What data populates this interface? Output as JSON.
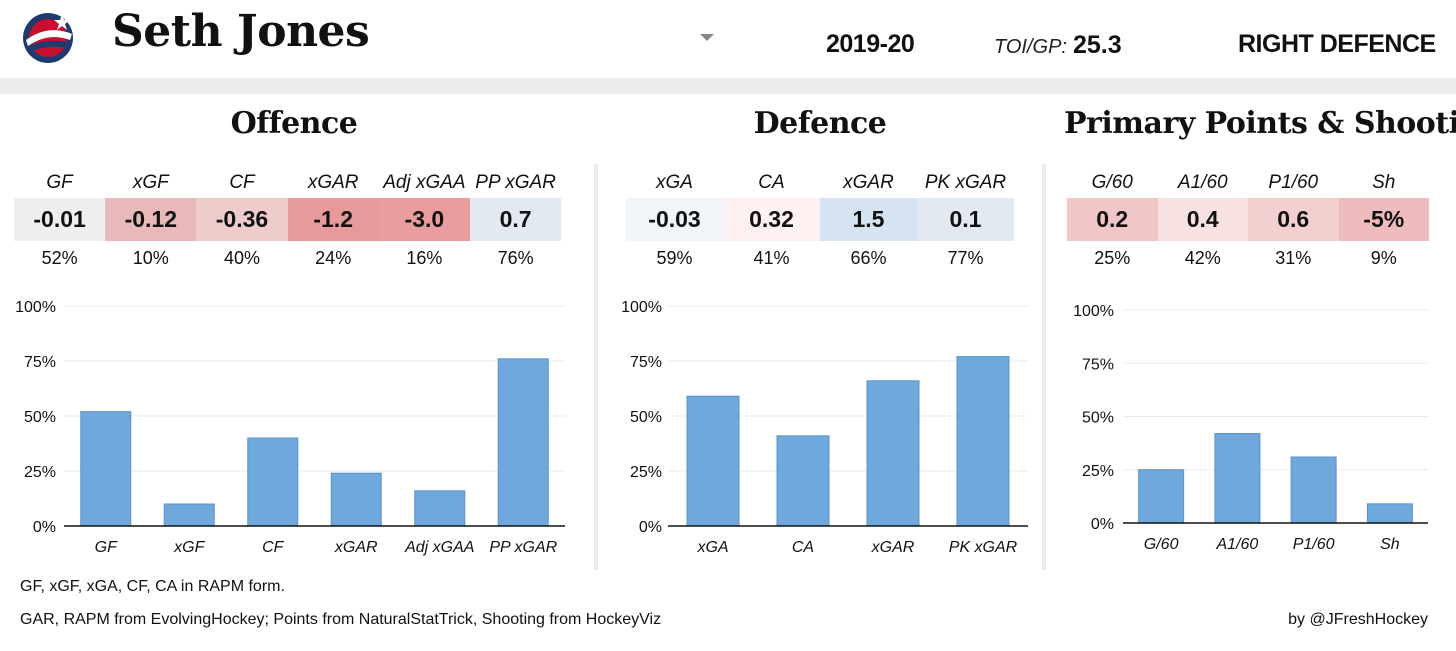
{
  "header": {
    "player_name": "Seth Jones",
    "season": "2019-20",
    "toi_label": "TOI/GP:",
    "toi_value": "25.3",
    "position": "RIGHT DEFENCE"
  },
  "sections": [
    {
      "title": "Offence",
      "metrics": [
        {
          "label": "GF",
          "value": "-0.01",
          "pct_label": "52%",
          "color": "#eeeeee"
        },
        {
          "label": "xGF",
          "value": "-0.12",
          "pct_label": "10%",
          "color": "#e8b9b9"
        },
        {
          "label": "CF",
          "value": "-0.36",
          "pct_label": "40%",
          "color": "#efcccc"
        },
        {
          "label": "xGAR",
          "value": "-1.2",
          "pct_label": "24%",
          "color": "#e89a9a"
        },
        {
          "label": "Adj xGAA",
          "value": "-3.0",
          "pct_label": "16%",
          "color": "#e99d9e"
        },
        {
          "label": "PP xGAR",
          "value": "0.7",
          "pct_label": "76%",
          "color": "#e3e9f1"
        }
      ]
    },
    {
      "title": "Defence",
      "metrics": [
        {
          "label": "xGA",
          "value": "-0.03",
          "pct_label": "59%",
          "color": "#f1f5fa"
        },
        {
          "label": "CA",
          "value": "0.32",
          "pct_label": "41%",
          "color": "#fdf1f1"
        },
        {
          "label": "xGAR",
          "value": "1.5",
          "pct_label": "66%",
          "color": "#d6e3f1"
        },
        {
          "label": "PK xGAR",
          "value": "0.1",
          "pct_label": "77%",
          "color": "#e3e9f1"
        }
      ]
    },
    {
      "title": "Primary Points & Shooting",
      "metrics": [
        {
          "label": "G/60",
          "value": "0.2",
          "pct_label": "25%",
          "color": "#f1c6c6"
        },
        {
          "label": "A1/60",
          "value": "0.4",
          "pct_label": "42%",
          "color": "#f8e1e1"
        },
        {
          "label": "P1/60",
          "value": "0.6",
          "pct_label": "31%",
          "color": "#f3d0d0"
        },
        {
          "label": "Sh",
          "value": "-5%",
          "pct_label": "9%",
          "color": "#eebcbc"
        }
      ]
    }
  ],
  "chart_data": [
    {
      "type": "bar",
      "categories": [
        "GF",
        "xGF",
        "CF",
        "xGAR",
        "Adj xGAA",
        "PP xGAR"
      ],
      "values": [
        52,
        10,
        40,
        24,
        16,
        76
      ],
      "ylim": [
        0,
        100
      ],
      "yticks": [
        "0%",
        "25%",
        "50%",
        "75%",
        "100%"
      ],
      "bar_color": "#6fa8dc"
    },
    {
      "type": "bar",
      "categories": [
        "xGA",
        "CA",
        "xGAR",
        "PK xGAR"
      ],
      "values": [
        59,
        41,
        66,
        77
      ],
      "ylim": [
        0,
        100
      ],
      "yticks": [
        "0%",
        "25%",
        "50%",
        "75%",
        "100%"
      ],
      "bar_color": "#6fa8dc"
    },
    {
      "type": "bar",
      "categories": [
        "G/60",
        "A1/60",
        "P1/60",
        "Sh"
      ],
      "values": [
        25,
        42,
        31,
        9
      ],
      "ylim": [
        0,
        100
      ],
      "yticks": [
        "0%",
        "25%",
        "50%",
        "75%",
        "100%"
      ],
      "bar_color": "#6fa8dc"
    }
  ],
  "footer": {
    "note": "GF, xGF, xGA, CF, CA in RAPM form.",
    "sources": "GAR, RAPM from EvolvingHockey; Points from NaturalStatTrick, Shooting from HockeyViz",
    "credit": "by @JFreshHockey"
  }
}
